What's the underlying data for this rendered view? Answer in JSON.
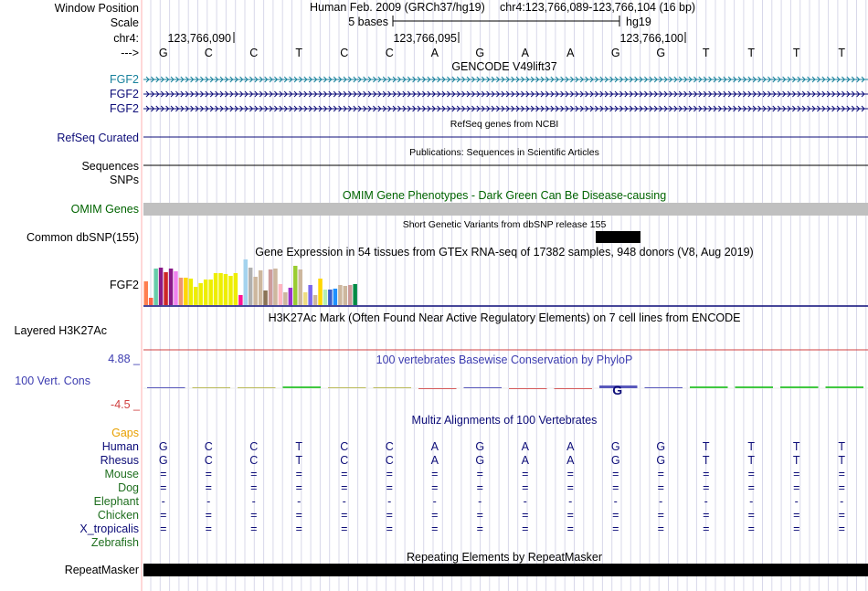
{
  "genome_view": {
    "assembly_label": "Human Feb. 2009 (GRCh37/hg19)",
    "position_label": "chr4:123,766,089-123,766,104 (16 bp)",
    "chrom": "chr4",
    "scale_text": "5 bases",
    "assembly_short": "hg19",
    "coord_ticks": [
      "123,766,090",
      "123,766,095",
      "123,766,100"
    ],
    "strand_arrow": "--->",
    "bases": [
      "G",
      "C",
      "C",
      "T",
      "C",
      "C",
      "A",
      "G",
      "A",
      "A",
      "G",
      "G",
      "T",
      "T",
      "T",
      "T"
    ]
  },
  "left_labels": {
    "window_position": "Window Position",
    "scale": "Scale",
    "chrom": "chr4:",
    "strand": "--->",
    "gencode": [
      "FGF2",
      "FGF2",
      "FGF2"
    ],
    "refseq": "RefSeq Curated",
    "sequences": "Sequences",
    "snps": "SNPs",
    "omim": "OMIM Genes",
    "dbsnp": "Common dbSNP(155)",
    "gtex": "FGF2",
    "h3k27ac": "Layered H3K27Ac",
    "cons_max": "4.88 _",
    "cons_label": "100 Vert. Cons",
    "cons_min": "-4.5 _",
    "gaps": "Gaps",
    "species": [
      "Human",
      "Rhesus",
      "Mouse",
      "Dog",
      "Elephant",
      "Chicken",
      "X_tropicalis",
      "Zebrafish"
    ],
    "repeatmasker": "RepeatMasker"
  },
  "track_titles": {
    "gencode": "GENCODE V49lift37",
    "refseq": "RefSeq genes from NCBI",
    "publications": "Publications: Sequences in Scientific Articles",
    "omim": "OMIM Gene Phenotypes - Dark Green Can Be Disease-causing",
    "dbsnp": "Short Genetic Variants from dbSNP release 155",
    "gtex": "Gene Expression in 54 tissues from GTEx RNA-seq of 17382 samples, 948 donors (V8, Aug 2019)",
    "h3k27ac": "H3K27Ac Mark (Often Found Near Active Regulatory Elements) on 7 cell lines from ENCODE",
    "phylop": "100 vertebrates Basewise Conservation by PhyloP",
    "multiz": "Multiz Alignments of 100 Vertebrates",
    "repeatmasker": "Repeating Elements by RepeatMasker"
  },
  "alignment": {
    "human": [
      "G",
      "C",
      "C",
      "T",
      "C",
      "C",
      "A",
      "G",
      "A",
      "A",
      "G",
      "G",
      "T",
      "T",
      "T",
      "T"
    ],
    "rhesus": [
      "G",
      "C",
      "C",
      "T",
      "C",
      "C",
      "A",
      "G",
      "A",
      "A",
      "G",
      "G",
      "T",
      "T",
      "T",
      "T"
    ],
    "mouse_symbol": "=",
    "dog_symbol": "=",
    "elephant_symbol": "-",
    "chicken_symbol": "=",
    "xtrop_symbol": "="
  },
  "gtex_bars": {
    "values": [
      26,
      8,
      40,
      41,
      36,
      40,
      37,
      30,
      30,
      29,
      20,
      24,
      28,
      28,
      35,
      35,
      34,
      32,
      35,
      11,
      50,
      41,
      31,
      38,
      16,
      39,
      40,
      23,
      14,
      19,
      43,
      39,
      14,
      22,
      11,
      29,
      17,
      17,
      18,
      22,
      21,
      22,
      23
    ],
    "colors": [
      "#ff7f50",
      "#ff6347",
      "#66cdaa",
      "#8b1a89",
      "#cd2626",
      "#8b1a89",
      "#ee82ee",
      "#ee9572",
      "#ffd700",
      "#eeee00",
      "#eeee00",
      "#eeee00",
      "#eeee00",
      "#eeee00",
      "#eeee00",
      "#eeee00",
      "#eeee00",
      "#eeee00",
      "#eeee00",
      "#ff1493",
      "#a4d3ee",
      "#b0b0b0",
      "#cdb79e",
      "#cdb79e",
      "#8b7355",
      "#cd9b9b",
      "#cdb79e",
      "#ffb6c1",
      "#cdb79e",
      "#9a32cd",
      "#9acd32",
      "#cdb79e",
      "#eedd82",
      "#7a67ee",
      "#cdb79e",
      "#ffd700",
      "#b4eeb4",
      "#3a5fcd",
      "#1e90ff",
      "#cdb79e",
      "#cdb79e",
      "#cd9b9b",
      "#008b45"
    ]
  },
  "colors": {
    "gencode": "#0c0c78",
    "gencode_first": "#17819c",
    "refseq": "#0c0c78",
    "omim": "#006400",
    "phylop": "#3c3cb0",
    "gaps": "#e8a000",
    "h3k27ac_line": "#d04040"
  }
}
